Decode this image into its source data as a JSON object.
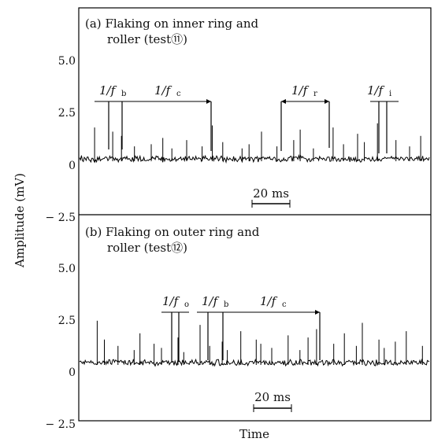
{
  "chart_data": [
    {
      "type": "line",
      "panel_label": "(a)",
      "title_line1": "Flaking on inner ring and",
      "title_line2": "roller (test⑪)",
      "ylabel": "Amplitude (mV)",
      "xlabel": "Time",
      "yticks": [
        "5.0",
        "2.5",
        "0",
        "− 2.5"
      ],
      "ylim": [
        -2.5,
        7.5
      ],
      "baseline_mV": 0.3,
      "scale_bar": "20 ms",
      "annotations": [
        {
          "label": "1/f",
          "sub": "b"
        },
        {
          "label": "1/f",
          "sub": "c"
        },
        {
          "label": "1/f",
          "sub": "r"
        },
        {
          "label": "1/f",
          "sub": "i"
        }
      ],
      "spike_heights_mV": [
        1.5,
        1.3,
        1.1,
        0.6,
        0.7,
        1.0,
        0.5,
        0.9,
        0.6,
        1.6,
        0.8,
        0.5,
        0.7,
        1.3,
        0.6,
        0.9,
        1.4,
        0.5,
        1.5,
        0.7,
        1.2,
        0.8,
        1.7,
        0.9,
        0.6,
        1.1
      ]
    },
    {
      "type": "line",
      "panel_label": "(b)",
      "title_line1": "Flaking on outer ring and",
      "title_line2": "roller (test⑫)",
      "ylabel": "Amplitude (mV)",
      "xlabel": "Time",
      "yticks": [
        "5.0",
        "2.5",
        "0",
        "− 2.5"
      ],
      "ylim": [
        -2.5,
        7.5
      ],
      "baseline_mV": 0.45,
      "scale_bar": "20 ms",
      "annotations": [
        {
          "label": "1/f",
          "sub": "o"
        },
        {
          "label": "1/f",
          "sub": "b"
        },
        {
          "label": "1/f",
          "sub": "c"
        }
      ],
      "spike_heights_mV": [
        2.0,
        1.1,
        0.8,
        0.6,
        1.4,
        0.9,
        0.7,
        1.2,
        0.5,
        1.8,
        0.8,
        1.0,
        0.6,
        1.5,
        1.1,
        0.9,
        0.7,
        1.3,
        0.6,
        1.2,
        1.6,
        0.9,
        1.4,
        0.8,
        1.9,
        1.1,
        0.7,
        1.0,
        1.5,
        0.8
      ]
    }
  ]
}
